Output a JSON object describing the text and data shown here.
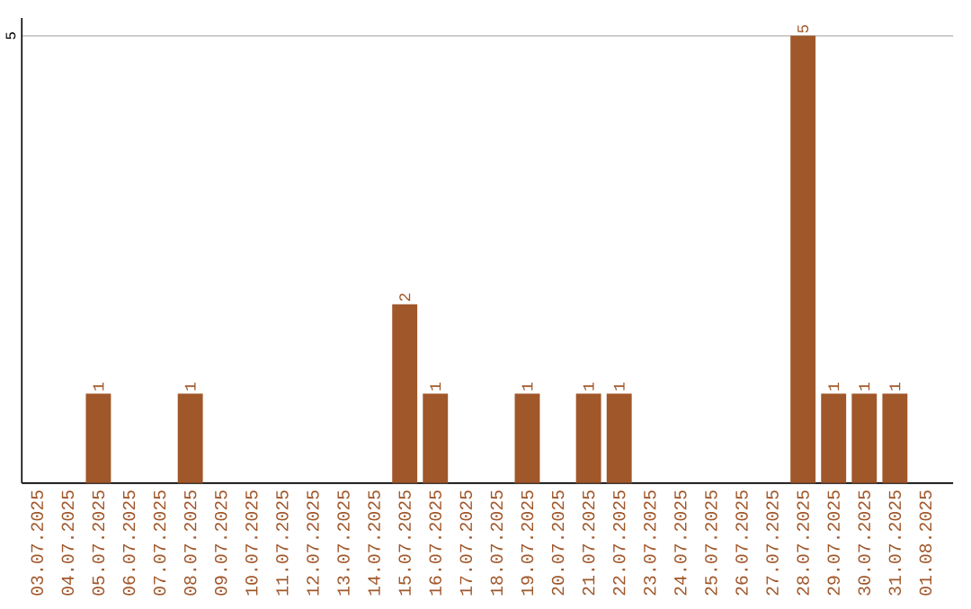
{
  "chart_data": {
    "type": "bar",
    "categories": [
      "03.07.2025",
      "04.07.2025",
      "05.07.2025",
      "06.07.2025",
      "07.07.2025",
      "08.07.2025",
      "09.07.2025",
      "10.07.2025",
      "11.07.2025",
      "12.07.2025",
      "13.07.2025",
      "14.07.2025",
      "15.07.2025",
      "16.07.2025",
      "17.07.2025",
      "18.07.2025",
      "19.07.2025",
      "20.07.2025",
      "21.07.2025",
      "22.07.2025",
      "23.07.2025",
      "24.07.2025",
      "25.07.2025",
      "26.07.2025",
      "27.07.2025",
      "28.07.2025",
      "29.07.2025",
      "30.07.2025",
      "31.07.2025",
      "01.08.2025"
    ],
    "values": [
      0,
      0,
      1,
      0,
      0,
      1,
      0,
      0,
      0,
      0,
      0,
      0,
      2,
      1,
      0,
      0,
      1,
      0,
      1,
      1,
      0,
      0,
      0,
      0,
      0,
      5,
      1,
      1,
      1,
      0
    ],
    "value_labels": [
      null,
      null,
      "1",
      null,
      null,
      "1",
      null,
      null,
      null,
      null,
      null,
      null,
      "2",
      "1",
      null,
      null,
      "1",
      null,
      "1",
      "1",
      null,
      null,
      null,
      null,
      null,
      "5",
      "1",
      "1",
      "1",
      null
    ],
    "color": "#a0572a",
    "ylim": [
      0,
      5.2
    ],
    "yticks": [
      5
    ],
    "grid": "y"
  }
}
